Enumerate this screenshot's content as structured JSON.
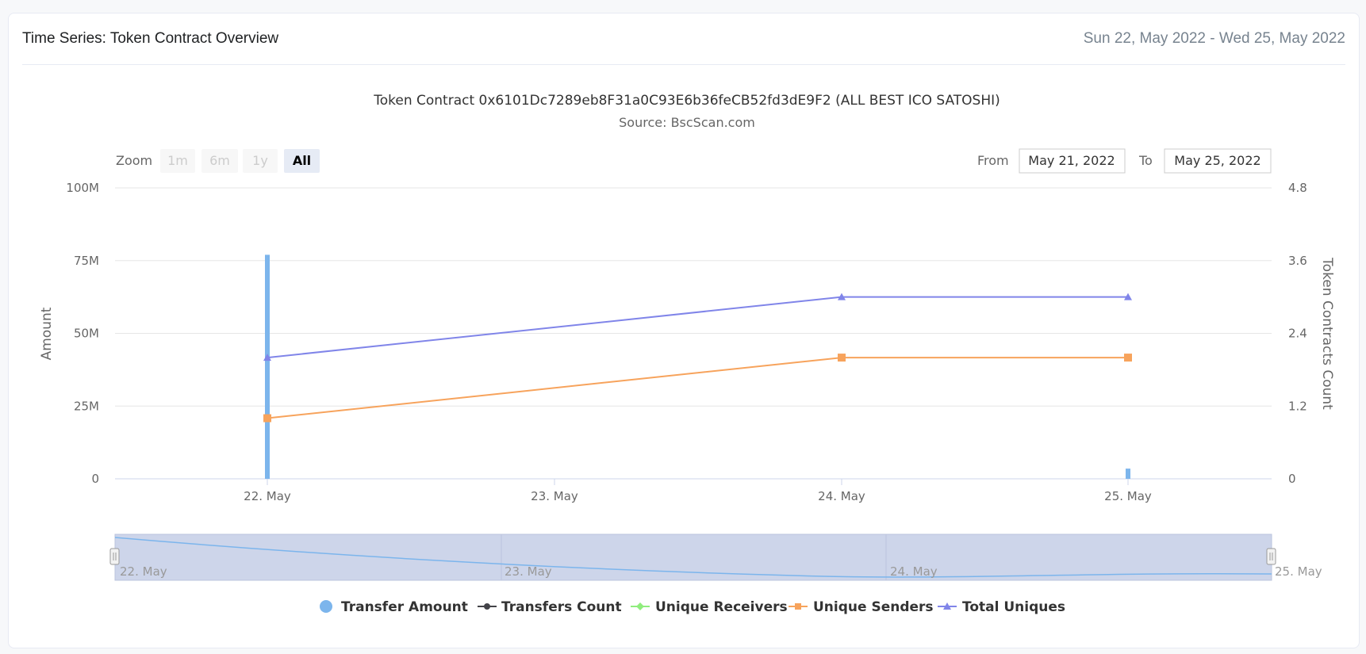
{
  "card": {
    "title": "Time Series: Token Contract Overview",
    "date_range": "Sun 22, May 2022 - Wed 25, May 2022"
  },
  "range_selector": {
    "zoom_label": "Zoom",
    "buttons": [
      "1m",
      "6m",
      "1y",
      "All"
    ],
    "active": "All",
    "from_label": "From",
    "from_value": "May 21, 2022",
    "to_label": "To",
    "to_value": "May 25, 2022"
  },
  "navigator": {
    "labels": [
      "22. May",
      "23. May",
      "24. May",
      "25. May"
    ]
  },
  "colors": {
    "transfer_amount": "#7cb5ec",
    "transfers_count": "#434348",
    "unique_receivers": "#90ed7d",
    "unique_senders": "#f7a35c",
    "total_uniques": "#8085e9",
    "navigator_fill": "#cdd5ea"
  },
  "chart_data": {
    "type": "bar",
    "title": "Token Contract 0x6101Dc7289eb8F31a0C93E6b36feCB52fd3dE9F2 (ALL BEST ICO SATOSHI)",
    "subtitle": "Source: BscScan.com",
    "categories": [
      "22. May",
      "23. May",
      "24. May",
      "25. May"
    ],
    "y_left": {
      "label": "Amount",
      "ylim": [
        0,
        100000000
      ],
      "tick_labels": [
        "0",
        "25M",
        "50M",
        "75M",
        "100M"
      ]
    },
    "y_right": {
      "label": "Token Contracts Count",
      "ylim": [
        0,
        4.8
      ],
      "tick_labels": [
        "0",
        "1.2",
        "2.4",
        "3.6",
        "4.8"
      ]
    },
    "series": [
      {
        "name": "Transfer Amount",
        "type": "column",
        "axis": "left",
        "values": [
          77000000,
          null,
          null,
          3500000
        ]
      },
      {
        "name": "Transfers Count",
        "type": "line",
        "axis": "right",
        "values": [
          null,
          null,
          null,
          null
        ]
      },
      {
        "name": "Unique Receivers",
        "type": "line",
        "axis": "right",
        "values": [
          null,
          null,
          null,
          null
        ]
      },
      {
        "name": "Unique Senders",
        "type": "line",
        "axis": "right",
        "values": [
          1,
          null,
          2,
          2
        ]
      },
      {
        "name": "Total Uniques",
        "type": "line",
        "axis": "right",
        "values": [
          2,
          null,
          3,
          3
        ]
      }
    ],
    "legend_position": "bottom"
  }
}
